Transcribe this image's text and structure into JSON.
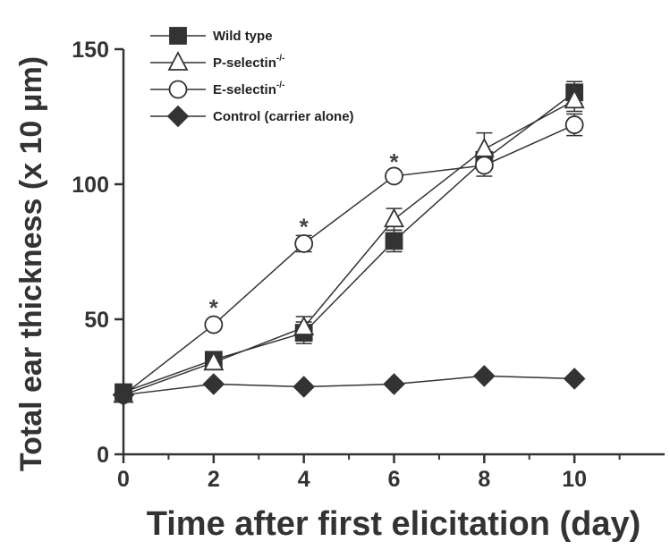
{
  "chart_data": {
    "type": "line",
    "xlabel": "Time after first elicitation (day)",
    "ylabel": "Total ear thickness (x 10 μm)",
    "xlim": [
      0,
      12
    ],
    "ylim": [
      0,
      150
    ],
    "x_ticks": [
      "0",
      "2",
      "4",
      "6",
      "8",
      "10"
    ],
    "y_ticks": [
      "0",
      "50",
      "100",
      "150"
    ],
    "legend_position": "top-left",
    "series": [
      {
        "name": "Wild type",
        "marker": "square-filled",
        "color": "#333333",
        "x": [
          0,
          2,
          4,
          6,
          8,
          10
        ],
        "y": [
          23,
          35,
          45,
          79,
          109,
          134
        ],
        "err": [
          0,
          0,
          4,
          4,
          0,
          4
        ]
      },
      {
        "name": "P-selectin",
        "superscript": "-/-",
        "marker": "triangle-open",
        "color": "#333333",
        "x": [
          0,
          2,
          4,
          6,
          8,
          10
        ],
        "y": [
          22,
          34,
          47,
          87,
          113,
          131
        ],
        "err": [
          0,
          0,
          4,
          4,
          6,
          4
        ]
      },
      {
        "name": "E-selectin",
        "superscript": "-/-",
        "marker": "circle-open",
        "color": "#333333",
        "x": [
          0,
          2,
          4,
          6,
          8,
          10
        ],
        "y": [
          22,
          48,
          78,
          103,
          107,
          122
        ],
        "err": [
          0,
          0,
          3,
          0,
          4,
          4
        ]
      },
      {
        "name": "Control (carrier alone)",
        "marker": "diamond-filled",
        "color": "#333333",
        "x": [
          0,
          2,
          4,
          6,
          8,
          10
        ],
        "y": [
          22,
          26,
          25,
          26,
          29,
          28
        ],
        "err": [
          0,
          0,
          0,
          0,
          0,
          0
        ]
      }
    ],
    "annotations": [
      {
        "text": "*",
        "x": 2,
        "y": 56
      },
      {
        "text": "*",
        "x": 4,
        "y": 86
      },
      {
        "text": "*",
        "x": 6,
        "y": 110
      }
    ]
  }
}
